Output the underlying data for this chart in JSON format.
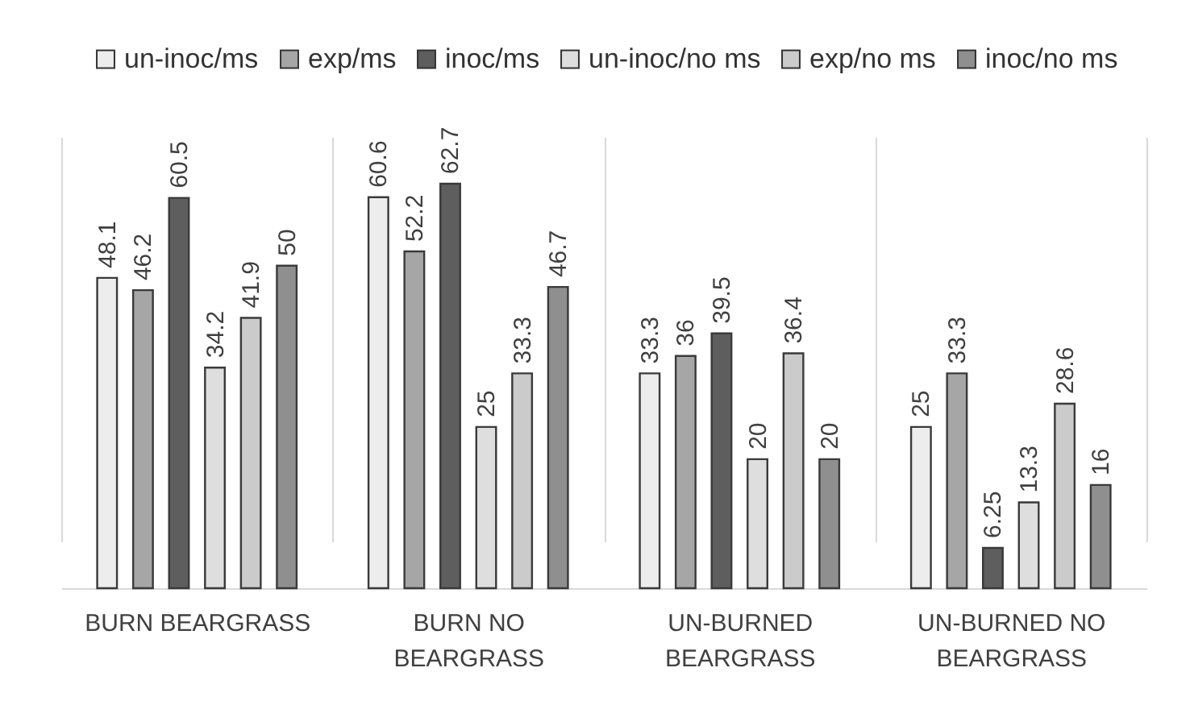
{
  "chart_data": {
    "type": "bar",
    "categories": [
      "BURN BEARGRASS",
      "BURN NO BEARGRASS",
      "UN-BURNED BEARGRASS",
      "UN-BURNED NO BEARGRASS"
    ],
    "series": [
      {
        "name": "un-inoc/ms",
        "color": "#ededed",
        "values": [
          48.1,
          60.6,
          33.3,
          25
        ]
      },
      {
        "name": "exp/ms",
        "color": "#a6a6a6",
        "values": [
          46.2,
          52.2,
          36,
          33.3
        ]
      },
      {
        "name": "inoc/ms",
        "color": "#5e5e5e",
        "values": [
          60.5,
          62.7,
          39.5,
          6.25
        ]
      },
      {
        "name": "un-inoc/no ms",
        "color": "#dedede",
        "values": [
          34.2,
          25,
          20,
          13.3
        ]
      },
      {
        "name": "exp/no ms",
        "color": "#cbcbcb",
        "values": [
          41.9,
          33.3,
          36.4,
          28.6
        ]
      },
      {
        "name": "inoc/no ms",
        "color": "#8f8f8f",
        "values": [
          50,
          46.7,
          20,
          16
        ]
      }
    ],
    "data_labels": true,
    "legend": "top",
    "grid": "x"
  }
}
